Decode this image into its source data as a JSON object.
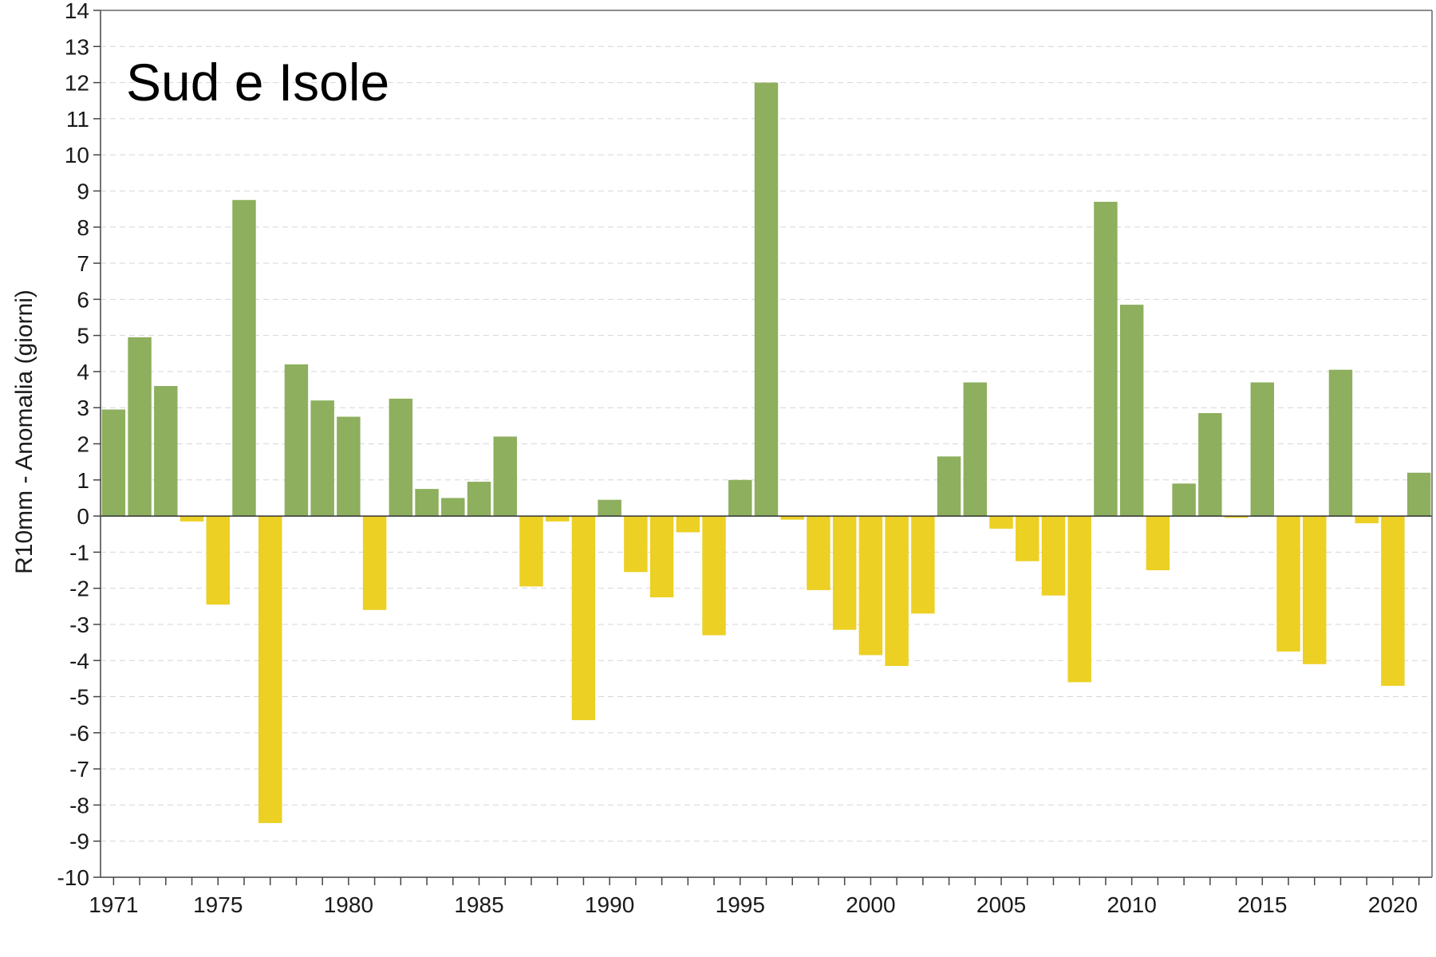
{
  "chart_data": {
    "type": "bar",
    "title": "Sud e Isole",
    "xlabel": "",
    "ylabel": "R10mm - Anomalia (giorni)",
    "ylim": [
      -10,
      14
    ],
    "yticks": [
      -10,
      -9,
      -8,
      -7,
      -6,
      -5,
      -4,
      -3,
      -2,
      -1,
      0,
      1,
      2,
      3,
      4,
      5,
      6,
      7,
      8,
      9,
      10,
      11,
      12,
      13,
      14
    ],
    "xtick_labels": [
      "1971",
      "1975",
      "1980",
      "1985",
      "1990",
      "1995",
      "2000",
      "2005",
      "2010",
      "2015",
      "2020"
    ],
    "grid": true,
    "colors": {
      "positive": "#8daf5e",
      "negative": "#ecd023"
    },
    "x": [
      1971,
      1972,
      1973,
      1974,
      1975,
      1976,
      1977,
      1978,
      1979,
      1980,
      1981,
      1982,
      1983,
      1984,
      1985,
      1986,
      1987,
      1988,
      1989,
      1990,
      1991,
      1992,
      1993,
      1994,
      1995,
      1996,
      1997,
      1998,
      1999,
      2000,
      2001,
      2002,
      2003,
      2004,
      2005,
      2006,
      2007,
      2008,
      2009,
      2010,
      2011,
      2012,
      2013,
      2014,
      2015,
      2016,
      2017,
      2018,
      2019,
      2020,
      2021
    ],
    "values": [
      2.95,
      4.95,
      3.6,
      -0.15,
      -2.45,
      8.75,
      -8.5,
      4.2,
      3.2,
      2.75,
      -2.6,
      3.25,
      0.75,
      0.5,
      0.95,
      2.2,
      -1.95,
      -0.15,
      -5.65,
      0.45,
      -1.55,
      -2.25,
      -0.45,
      -3.3,
      1.0,
      12.0,
      -0.1,
      -2.05,
      -3.15,
      -3.85,
      -4.15,
      -2.7,
      1.65,
      3.7,
      -0.35,
      -1.25,
      -2.2,
      -4.6,
      8.7,
      5.85,
      -1.5,
      0.9,
      2.85,
      -0.05,
      3.7,
      -3.75,
      -4.1,
      4.05,
      -0.2,
      -4.7,
      1.2
    ]
  }
}
